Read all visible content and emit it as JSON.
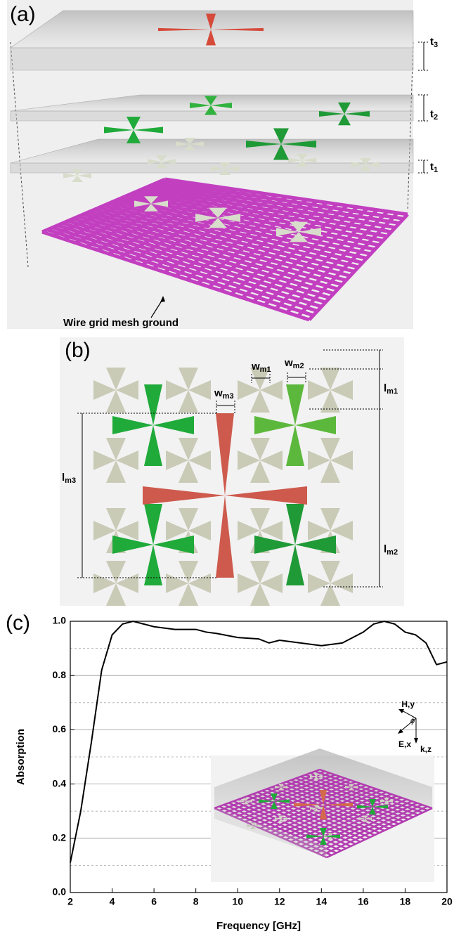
{
  "panel_a": {
    "label": "(a)",
    "annotation": "Wire grid mesh ground",
    "thickness_labels": [
      {
        "base": "t",
        "sub": "3"
      },
      {
        "base": "t",
        "sub": "2"
      },
      {
        "base": "t",
        "sub": "1"
      }
    ]
  },
  "panel_b": {
    "label": "(b)",
    "dimensions": [
      {
        "base": "w",
        "sub": "m1"
      },
      {
        "base": "w",
        "sub": "m2"
      },
      {
        "base": "w",
        "sub": "m3"
      },
      {
        "base": "l",
        "sub": "m1"
      },
      {
        "base": "l",
        "sub": "m3"
      },
      {
        "base": "l",
        "sub": "m2"
      }
    ]
  },
  "panel_c": {
    "label": "(c)",
    "inset_labels": [
      "H,y",
      "E,x",
      "k,z",
      "ϕ"
    ]
  },
  "chart_data": {
    "type": "line",
    "x_label": "Frequency [GHz]",
    "y_label": "Absorption",
    "x": [
      2,
      2.5,
      3,
      3.5,
      4,
      4.5,
      5,
      5.5,
      6,
      7,
      8,
      8.5,
      9,
      10,
      11,
      11.5,
      12,
      13,
      14,
      15,
      15.5,
      16,
      16.5,
      17,
      17.5,
      18,
      18.5,
      19,
      19.5,
      20
    ],
    "values": [
      0.11,
      0.3,
      0.55,
      0.82,
      0.95,
      0.99,
      1.0,
      0.99,
      0.98,
      0.97,
      0.97,
      0.96,
      0.955,
      0.94,
      0.935,
      0.92,
      0.93,
      0.92,
      0.91,
      0.92,
      0.94,
      0.96,
      0.99,
      1.0,
      0.99,
      0.96,
      0.95,
      0.92,
      0.84,
      0.85
    ],
    "color": "#000000",
    "xlim": [
      2,
      20
    ],
    "xticks": [
      2,
      4,
      6,
      8,
      10,
      12,
      14,
      16,
      18,
      20
    ],
    "ylim": [
      0,
      1
    ],
    "yticks": [
      {
        "value": 0,
        "label": "0.0"
      },
      0.2,
      0.4,
      0.6,
      0.8,
      {
        "value": 1,
        "label": "1.0"
      }
    ],
    "yminor": [
      0.1,
      0.3,
      0.5,
      0.7,
      0.9
    ],
    "grid": true
  }
}
